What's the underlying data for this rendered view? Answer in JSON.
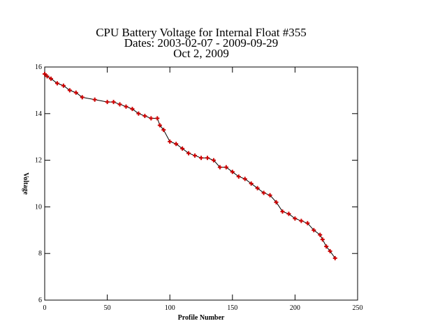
{
  "chart_data": {
    "type": "line",
    "title": [
      "CPU Battery Voltage for Internal Float #355",
      "Dates:  2003-02-07 -  2009-09-29",
      "Oct  2, 2009"
    ],
    "x_label": "Profile Number",
    "y_label": "Voltage",
    "x": [
      0,
      2,
      5,
      10,
      15,
      20,
      25,
      30,
      40,
      50,
      55,
      60,
      65,
      70,
      75,
      80,
      85,
      90,
      92,
      95,
      100,
      105,
      110,
      115,
      120,
      125,
      130,
      135,
      140,
      145,
      150,
      155,
      160,
      165,
      170,
      175,
      180,
      185,
      190,
      195,
      200,
      205,
      210,
      215,
      220,
      222,
      225,
      228,
      232
    ],
    "series": [
      {
        "name": "Voltage",
        "color": "#cc0000",
        "line_color": "#000000",
        "values": [
          15.7,
          15.6,
          15.5,
          15.3,
          15.2,
          15.0,
          14.9,
          14.7,
          14.6,
          14.5,
          14.5,
          14.4,
          14.3,
          14.2,
          14.0,
          13.9,
          13.8,
          13.8,
          13.5,
          13.3,
          12.8,
          12.7,
          12.5,
          12.3,
          12.2,
          12.1,
          12.1,
          12.0,
          11.7,
          11.7,
          11.5,
          11.3,
          11.2,
          11.0,
          10.8,
          10.6,
          10.5,
          10.2,
          9.8,
          9.7,
          9.5,
          9.4,
          9.3,
          9.0,
          8.8,
          8.6,
          8.3,
          8.1,
          7.8
        ]
      }
    ],
    "xlim": [
      0,
      250
    ],
    "xticks": [
      0,
      50,
      100,
      150,
      200,
      250
    ],
    "ylim": [
      6,
      16
    ],
    "yticks": [
      6,
      8,
      10,
      12,
      14,
      16
    ],
    "grid": false
  }
}
